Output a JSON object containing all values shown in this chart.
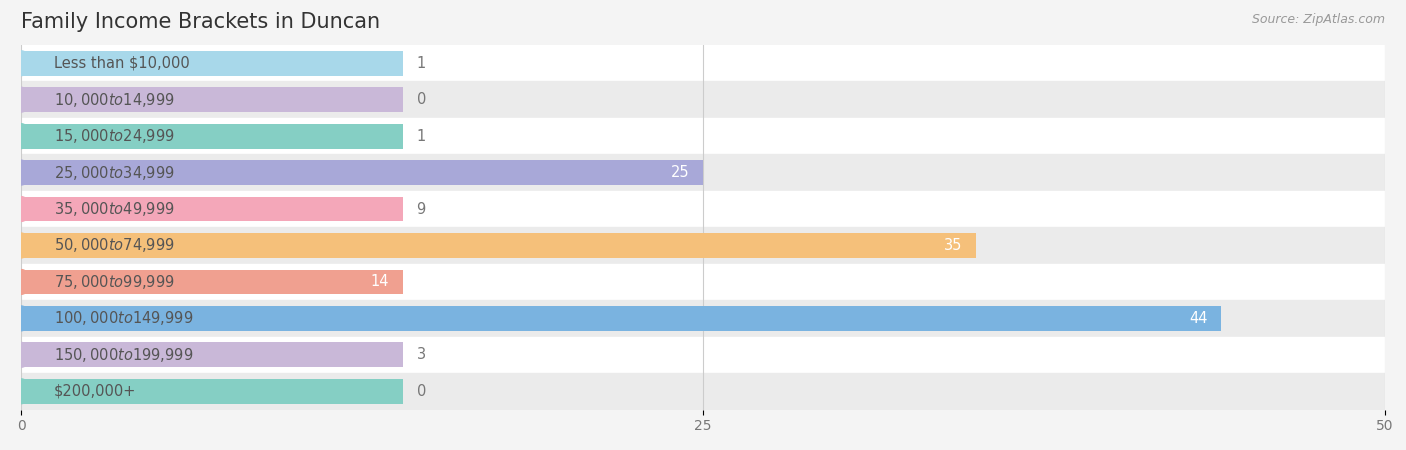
{
  "title": "Family Income Brackets in Duncan",
  "source": "Source: ZipAtlas.com",
  "categories": [
    "Less than $10,000",
    "$10,000 to $14,999",
    "$15,000 to $24,999",
    "$25,000 to $34,999",
    "$35,000 to $49,999",
    "$50,000 to $74,999",
    "$75,000 to $99,999",
    "$100,000 to $149,999",
    "$150,000 to $199,999",
    "$200,000+"
  ],
  "values": [
    1,
    0,
    1,
    25,
    9,
    35,
    14,
    44,
    3,
    0
  ],
  "bar_colors": [
    "#a8d8ea",
    "#c9b8d8",
    "#85cfc4",
    "#a8a8d8",
    "#f4a7b9",
    "#f5c07a",
    "#f0a090",
    "#7ab3e0",
    "#c9b8d8",
    "#85cfc4"
  ],
  "background_color": "#f4f4f4",
  "xlim": [
    0,
    50
  ],
  "xticks": [
    0,
    25,
    50
  ],
  "bar_height": 0.68,
  "value_color_inside": "#ffffff",
  "value_color_outside": "#777777",
  "title_fontsize": 15,
  "label_fontsize": 10.5,
  "value_fontsize": 10.5,
  "source_fontsize": 9,
  "min_bar_for_label": 14
}
